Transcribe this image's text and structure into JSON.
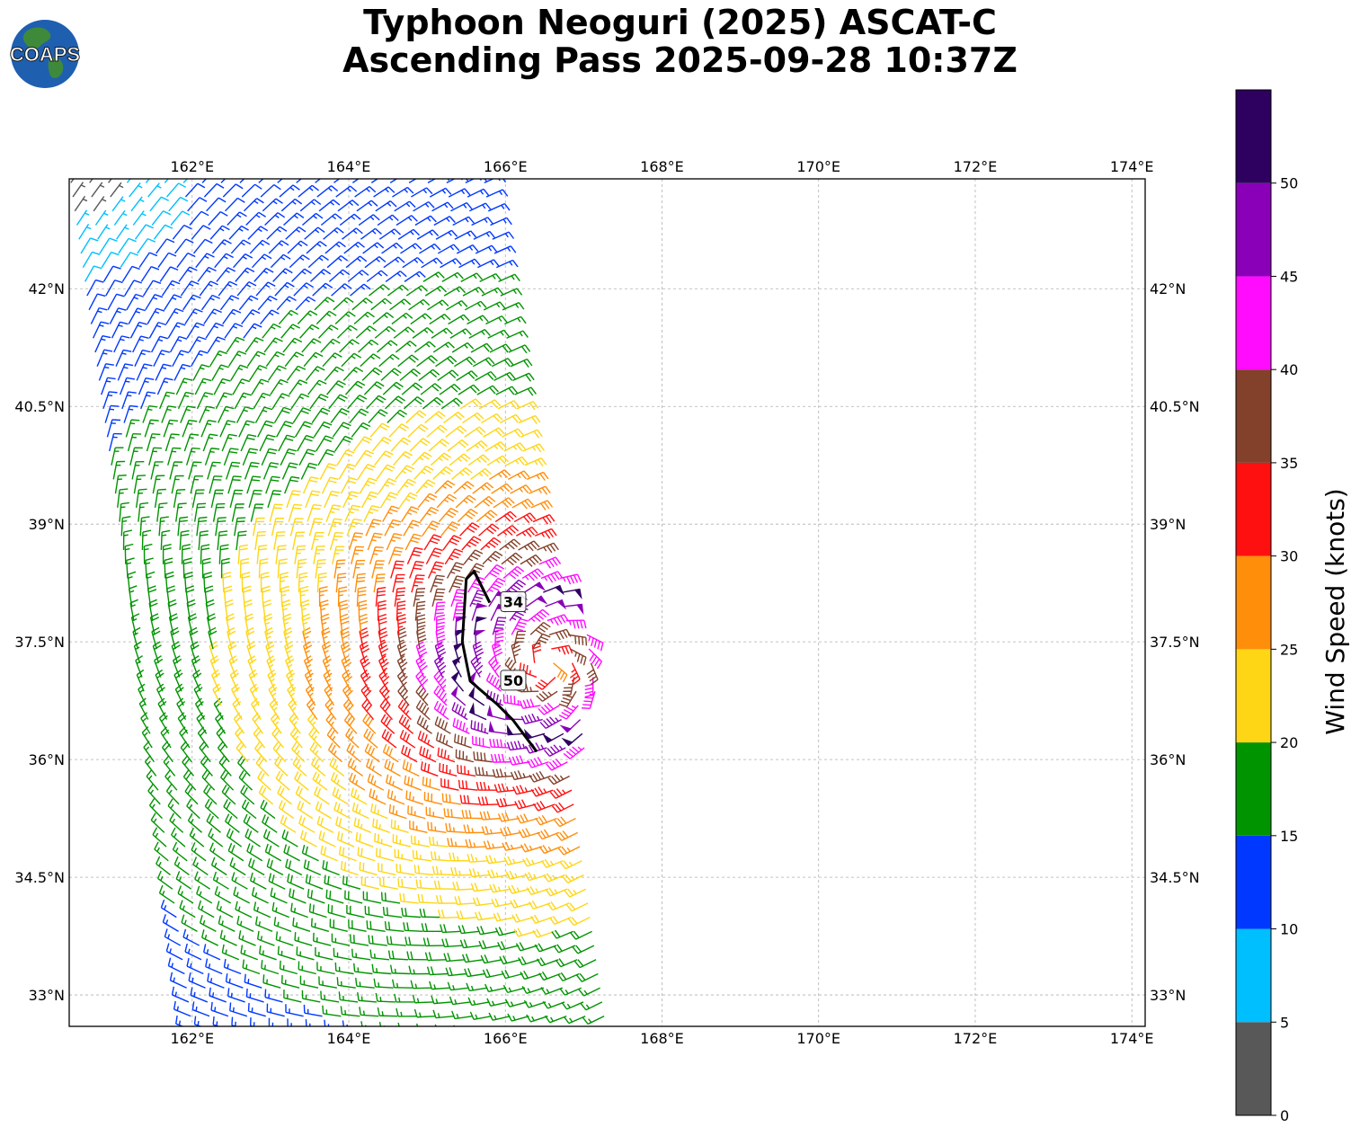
{
  "title": {
    "line1": "Typhoon Neoguri (2025) ASCAT-C",
    "line2": "Ascending Pass 2025-09-28 10:37Z"
  },
  "logo": {
    "text": "COAPS",
    "icon": "globe-logo-icon",
    "ocean_color": "#1f5fb0",
    "land_color": "#3f8a3a"
  },
  "map": {
    "projection": "plate-carree",
    "lon_range": [
      160.43,
      174.17
    ],
    "lat_range": [
      32.6,
      43.4
    ],
    "grid": true,
    "lon_ticks": [
      {
        "value": 162,
        "label": "162°E"
      },
      {
        "value": 164,
        "label": "164°E"
      },
      {
        "value": 166,
        "label": "166°E"
      },
      {
        "value": 168,
        "label": "168°E"
      },
      {
        "value": 170,
        "label": "170°E"
      },
      {
        "value": 172,
        "label": "172°E"
      },
      {
        "value": 174,
        "label": "174°E"
      }
    ],
    "lat_ticks": [
      {
        "value": 42,
        "label": "42°N"
      },
      {
        "value": 40.5,
        "label": "40.5°N"
      },
      {
        "value": 39,
        "label": "39°N"
      },
      {
        "value": 37.5,
        "label": "37.5°N"
      },
      {
        "value": 36,
        "label": "36°N"
      },
      {
        "value": 34.5,
        "label": "34.5°N"
      },
      {
        "value": 33,
        "label": "33°N"
      }
    ],
    "storm_center": {
      "lon": 166.55,
      "lat": 37.2
    },
    "swath_edges": {
      "west": [
        [
          160.45,
          43.35
        ],
        [
          162.0,
          32.6
        ]
      ],
      "east": [
        [
          165.9,
          43.35
        ],
        [
          167.4,
          32.6
        ]
      ]
    },
    "contours": [
      {
        "label": "34",
        "label_pos": [
          166.1,
          38.0
        ],
        "points": [
          [
            165.6,
            38.4
          ],
          [
            165.7,
            38.2
          ],
          [
            165.8,
            38.0
          ]
        ]
      },
      {
        "label": "50",
        "label_pos": [
          166.1,
          37.0
        ],
        "points": [
          [
            165.8,
            38.0
          ],
          [
            165.6,
            38.4
          ],
          [
            165.5,
            38.3
          ],
          [
            165.45,
            37.5
          ],
          [
            165.55,
            37.0
          ],
          [
            165.9,
            36.7
          ],
          [
            166.1,
            36.5
          ],
          [
            166.25,
            36.3
          ],
          [
            166.4,
            36.1
          ]
        ]
      }
    ]
  },
  "chart_data": {
    "type": "wind-barb-map",
    "field": "surface wind vector (knots)",
    "sample_winds": [
      {
        "lon": 161.5,
        "lat": 42.8,
        "speed_kt": 8
      },
      {
        "lon": 162.5,
        "lat": 41.5,
        "speed_kt": 14
      },
      {
        "lon": 163.5,
        "lat": 40.5,
        "speed_kt": 19
      },
      {
        "lon": 164.5,
        "lat": 39.5,
        "speed_kt": 24
      },
      {
        "lon": 165.5,
        "lat": 38.8,
        "speed_kt": 31
      },
      {
        "lon": 166.2,
        "lat": 37.6,
        "speed_kt": 44
      },
      {
        "lon": 166.4,
        "lat": 37.1,
        "speed_kt": 52
      },
      {
        "lon": 165.0,
        "lat": 35.5,
        "speed_kt": 22
      },
      {
        "lon": 163.5,
        "lat": 34.0,
        "speed_kt": 17
      }
    ]
  },
  "colorbar": {
    "title": "Wind Speed (knots)",
    "bins": [
      {
        "from": 0,
        "to": 5,
        "color": "#585858"
      },
      {
        "from": 5,
        "to": 10,
        "color": "#00bfff"
      },
      {
        "from": 10,
        "to": 15,
        "color": "#0038ff"
      },
      {
        "from": 15,
        "to": 20,
        "color": "#009400"
      },
      {
        "from": 20,
        "to": 25,
        "color": "#fed615"
      },
      {
        "from": 25,
        "to": 30,
        "color": "#ff8e0b"
      },
      {
        "from": 30,
        "to": 35,
        "color": "#ff1010"
      },
      {
        "from": 35,
        "to": 40,
        "color": "#83402a"
      },
      {
        "from": 40,
        "to": 45,
        "color": "#ff0cff"
      },
      {
        "from": 45,
        "to": 50,
        "color": "#8a00b8"
      },
      {
        "from": 50,
        "to": 55,
        "color": "#2e0060"
      }
    ],
    "tick_labels": [
      "0",
      "5",
      "10",
      "15",
      "20",
      "25",
      "30",
      "35",
      "40",
      "45",
      "50"
    ]
  }
}
